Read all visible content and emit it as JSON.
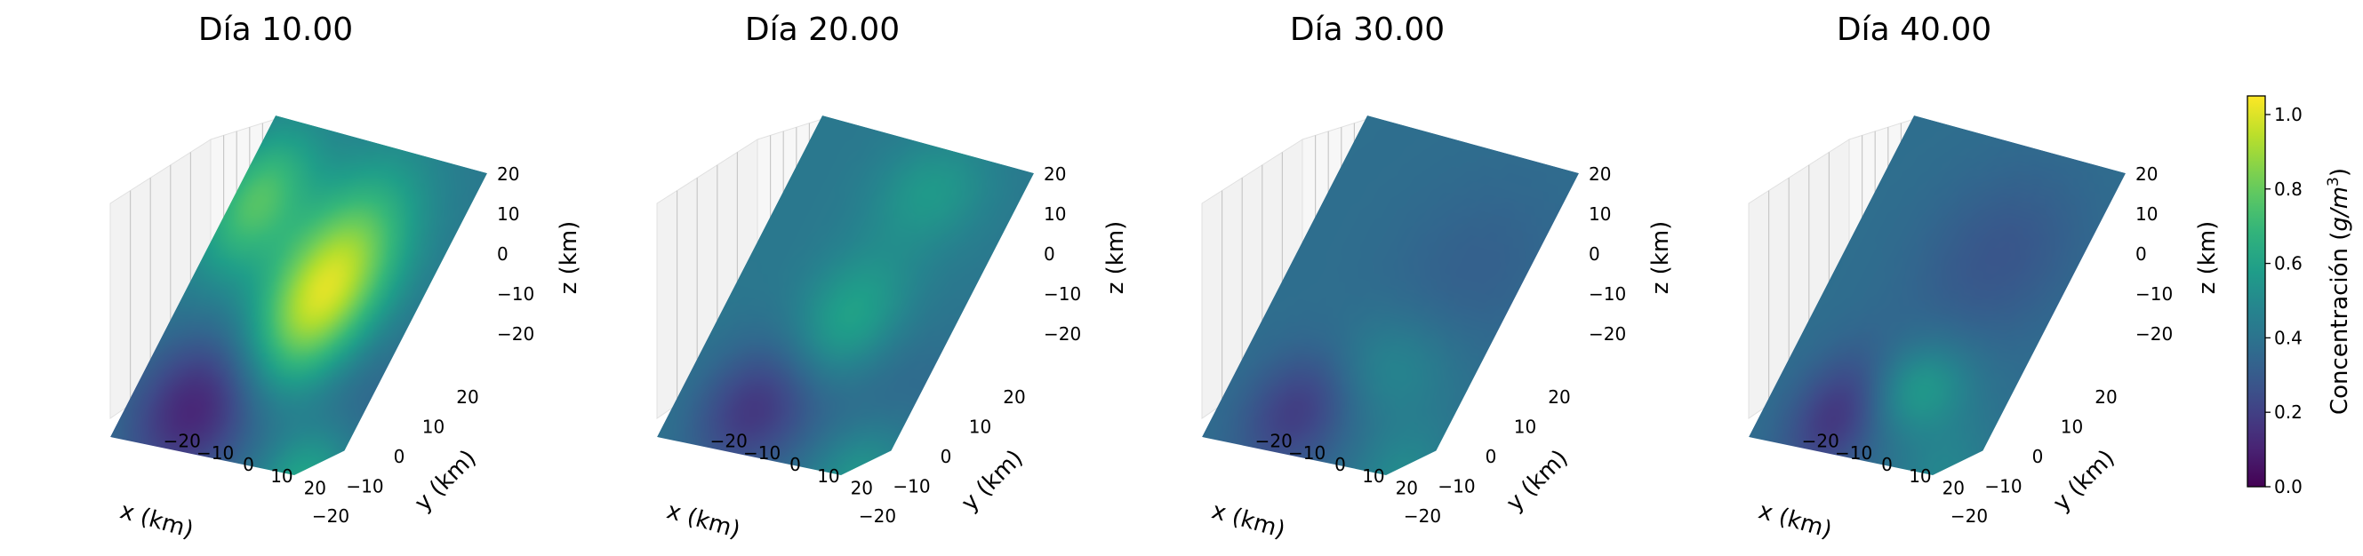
{
  "chart_data": [
    {
      "type": "heatmap",
      "title": "Día 10.00",
      "xlabel": "x (km)",
      "ylabel": "y (km)",
      "zlabel": "z (km)",
      "xlim": [
        -25,
        25
      ],
      "ylim": [
        -25,
        25
      ],
      "zlim": [
        -25,
        25
      ],
      "x_ticks": [
        "−20",
        "−10",
        "0",
        "10",
        "20"
      ],
      "y_ticks": [
        "−20",
        "−10",
        "0",
        "10",
        "20"
      ],
      "z_ticks": [
        "−20",
        "−10",
        "0",
        "10",
        "20"
      ],
      "grid": true,
      "blobs": [
        {
          "x": 0.58,
          "y": 0.46,
          "sx": 0.19,
          "sy": 0.24,
          "amp": 0.62
        },
        {
          "x": 0.09,
          "y": 0.24,
          "sx": 0.15,
          "sy": 0.16,
          "amp": 0.33
        },
        {
          "x": 0.31,
          "y": 0.86,
          "sx": 0.22,
          "sy": 0.17,
          "amp": -0.33
        },
        {
          "x": 0.8,
          "y": 0.72,
          "sx": 0.3,
          "sy": 0.18,
          "amp": -0.12
        },
        {
          "x": 0.9,
          "y": 0.98,
          "sx": 0.14,
          "sy": 0.12,
          "amp": 0.22
        }
      ],
      "base_value": 0.42
    },
    {
      "type": "heatmap",
      "title": "Día 20.00",
      "xlabel": "x (km)",
      "ylabel": "y (km)",
      "zlabel": "z (km)",
      "xlim": [
        -25,
        25
      ],
      "ylim": [
        -25,
        25
      ],
      "zlim": [
        -25,
        25
      ],
      "x_ticks": [
        "−20",
        "−10",
        "0",
        "10",
        "20"
      ],
      "y_ticks": [
        "−20",
        "−10",
        "0",
        "10",
        "20"
      ],
      "z_ticks": [
        "−20",
        "−10",
        "0",
        "10",
        "20"
      ],
      "grid": true,
      "blobs": [
        {
          "x": 0.55,
          "y": 0.55,
          "sx": 0.17,
          "sy": 0.15,
          "amp": 0.22
        },
        {
          "x": 0.62,
          "y": 0.12,
          "sx": 0.18,
          "sy": 0.12,
          "amp": 0.14
        },
        {
          "x": 0.34,
          "y": 0.86,
          "sx": 0.19,
          "sy": 0.15,
          "amp": -0.24
        },
        {
          "x": 0.8,
          "y": 0.72,
          "sx": 0.3,
          "sy": 0.18,
          "amp": -0.08
        },
        {
          "x": 0.92,
          "y": 0.96,
          "sx": 0.15,
          "sy": 0.12,
          "amp": 0.15
        }
      ],
      "base_value": 0.42
    },
    {
      "type": "heatmap",
      "title": "Día 30.00",
      "xlabel": "x (km)",
      "ylabel": "y (km)",
      "zlabel": "z (km)",
      "xlim": [
        -25,
        25
      ],
      "ylim": [
        -25,
        25
      ],
      "zlim": [
        -25,
        25
      ],
      "x_ticks": [
        "−20",
        "−10",
        "0",
        "10",
        "20"
      ],
      "y_ticks": [
        "−20",
        "−10",
        "0",
        "10",
        "20"
      ],
      "z_ticks": [
        "−20",
        "−10",
        "0",
        "10",
        "20"
      ],
      "grid": true,
      "blobs": [
        {
          "x": 0.62,
          "y": 0.68,
          "sx": 0.22,
          "sy": 0.12,
          "amp": 0.12
        },
        {
          "x": 0.34,
          "y": 0.86,
          "sx": 0.17,
          "sy": 0.14,
          "amp": -0.2
        },
        {
          "x": 0.78,
          "y": 0.35,
          "sx": 0.28,
          "sy": 0.22,
          "amp": -0.06
        },
        {
          "x": 0.92,
          "y": 0.98,
          "sx": 0.15,
          "sy": 0.12,
          "amp": 0.12
        }
      ],
      "base_value": 0.38
    },
    {
      "type": "heatmap",
      "title": "Día 40.00",
      "xlabel": "x (km)",
      "ylabel": "y (km)",
      "zlabel": "z (km)",
      "xlim": [
        -25,
        25
      ],
      "ylim": [
        -25,
        25
      ],
      "zlim": [
        -25,
        25
      ],
      "x_ticks": [
        "−20",
        "−10",
        "0",
        "10",
        "20"
      ],
      "y_ticks": [
        "−20",
        "−10",
        "0",
        "10",
        "20"
      ],
      "z_ticks": [
        "−20",
        "−10",
        "0",
        "10",
        "20"
      ],
      "grid": true,
      "blobs": [
        {
          "x": 0.6,
          "y": 0.75,
          "sx": 0.16,
          "sy": 0.1,
          "amp": 0.2
        },
        {
          "x": 0.32,
          "y": 0.88,
          "sx": 0.15,
          "sy": 0.14,
          "amp": -0.22
        },
        {
          "x": 0.66,
          "y": 0.32,
          "sx": 0.26,
          "sy": 0.2,
          "amp": -0.1
        },
        {
          "x": 0.9,
          "y": 0.98,
          "sx": 0.15,
          "sy": 0.12,
          "amp": 0.1
        }
      ],
      "base_value": 0.38
    }
  ],
  "colorbar": {
    "label": "Concentración ($g/m^3$)",
    "label_text": "Concentración (",
    "label_unit": "g/m",
    "label_exp": "3",
    "label_close": ")",
    "min": 0.0,
    "max": 1.05,
    "ticks": [
      {
        "value": 0.0,
        "label": "0.0"
      },
      {
        "value": 0.2,
        "label": "0.2"
      },
      {
        "value": 0.4,
        "label": "0.4"
      },
      {
        "value": 0.6,
        "label": "0.6"
      },
      {
        "value": 0.8,
        "label": "0.8"
      },
      {
        "value": 1.0,
        "label": "1.0"
      }
    ],
    "colormap": "viridis"
  }
}
